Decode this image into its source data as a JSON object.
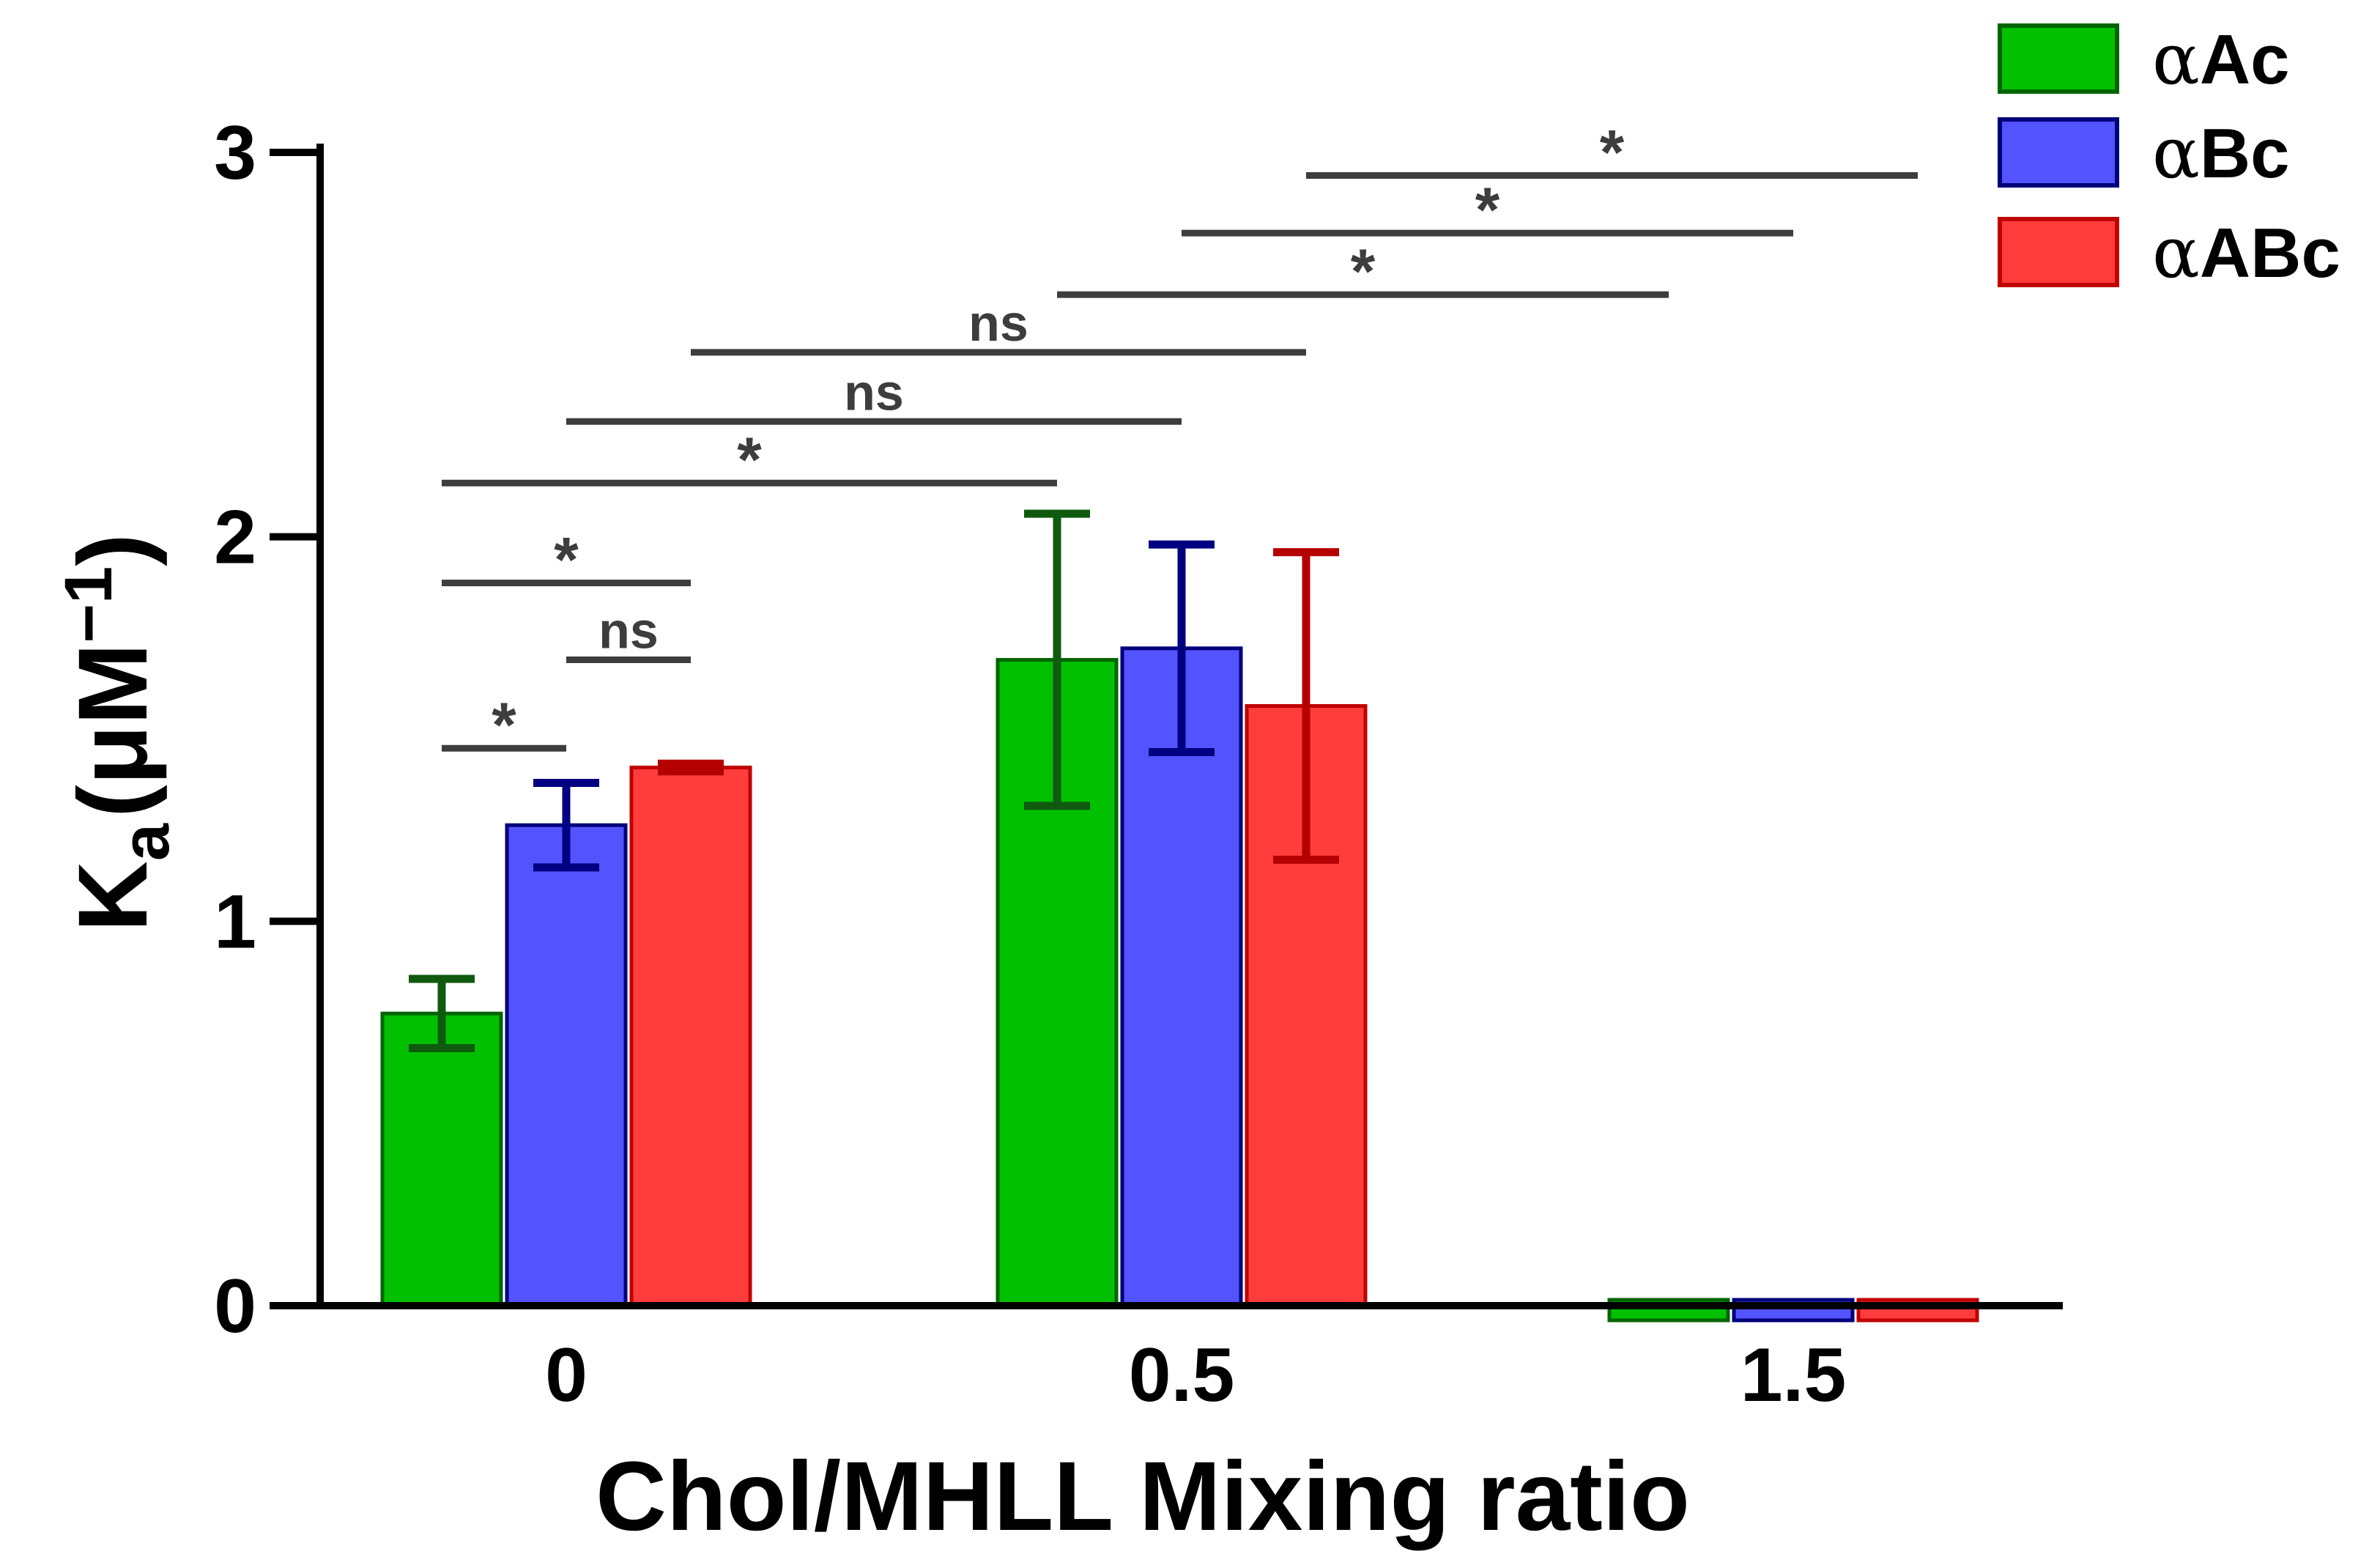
{
  "chart_data": {
    "type": "bar",
    "title": "",
    "xlabel": "Chol/MHLL Mixing ratio",
    "ylabel": {
      "main": "K",
      "subscript": "a",
      "units": "(μM",
      "superscript": "−1",
      "close": ")"
    },
    "categories": [
      "0",
      "0.5",
      "1.5"
    ],
    "ylim": [
      0,
      3
    ],
    "yticks": [
      "0",
      "1",
      "2",
      "3"
    ],
    "series": [
      {
        "name": "αAc",
        "greek": "α",
        "label": "Ac",
        "color": "#00c000",
        "edge": "#006400",
        "errColor": "#0f5a0f",
        "values": [
          0.76,
          1.68,
          0
        ],
        "errors": [
          0.09,
          0.38,
          0
        ]
      },
      {
        "name": "αBc",
        "greek": "α",
        "label": "Bc",
        "color": "#5353ff",
        "edge": "#00007a",
        "errColor": "#000080",
        "values": [
          1.25,
          1.71,
          0
        ],
        "errors": [
          0.11,
          0.27,
          0
        ]
      },
      {
        "name": "αABc",
        "greek": "α",
        "label": "ABc",
        "color": "#ff3c3c",
        "edge": "#c00000",
        "errColor": "#b40000",
        "values": [
          1.4,
          1.56,
          0
        ],
        "errors": [
          0.01,
          0.4,
          0
        ]
      }
    ],
    "significance": [
      {
        "from": [
          0,
          0
        ],
        "to": [
          0,
          1
        ],
        "y": 1.45,
        "label": "*"
      },
      {
        "from": [
          0,
          1
        ],
        "to": [
          0,
          2
        ],
        "y": 1.68,
        "label": "ns"
      },
      {
        "from": [
          0,
          0
        ],
        "to": [
          0,
          2
        ],
        "y": 1.88,
        "label": "*"
      },
      {
        "from": [
          0,
          0
        ],
        "to": [
          1,
          0
        ],
        "y": 2.14,
        "label": "*"
      },
      {
        "from": [
          0,
          1
        ],
        "to": [
          1,
          1
        ],
        "y": 2.3,
        "label": "ns"
      },
      {
        "from": [
          0,
          2
        ],
        "to": [
          1,
          2
        ],
        "y": 2.48,
        "label": "ns"
      },
      {
        "from": [
          1,
          0
        ],
        "to": [
          2,
          0
        ],
        "y": 2.63,
        "label": "*"
      },
      {
        "from": [
          1,
          1
        ],
        "to": [
          2,
          1
        ],
        "y": 2.79,
        "label": "*"
      },
      {
        "from": [
          1,
          2
        ],
        "to": [
          2,
          2
        ],
        "y": 2.94,
        "label": "*"
      }
    ],
    "legend_position": "top-right",
    "grid": false
  }
}
